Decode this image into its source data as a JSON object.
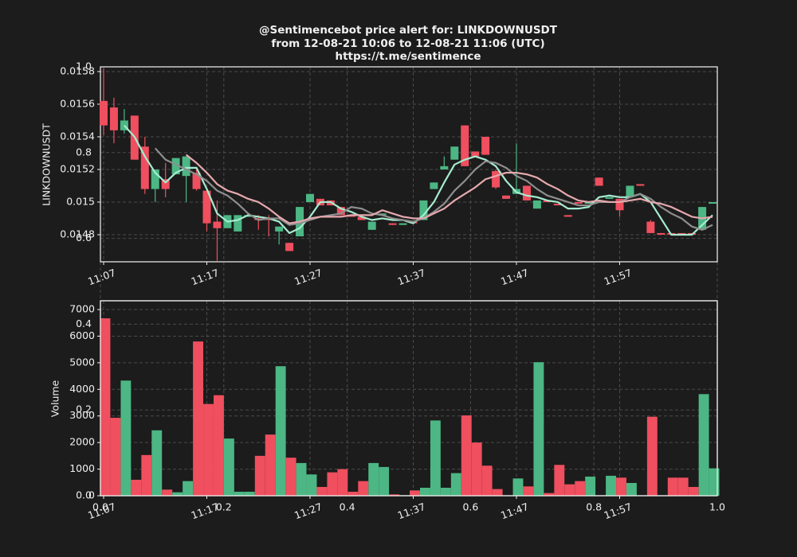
{
  "chart_data": [
    {
      "type": "candlestick",
      "title": [
        "@Sentimencebot price alert for: LINKDOWNUSDT",
        "from 12-08-21 10:06 to 12-08-21 11:06 (UTC)",
        "https://t.me/sentimence"
      ],
      "ylabel": "LINKDOWNUSDT",
      "x": [
        "11:07",
        "11:08",
        "11:09",
        "11:10",
        "11:11",
        "11:12",
        "11:13",
        "11:14",
        "11:15",
        "11:16",
        "11:17",
        "11:18",
        "11:19",
        "11:20",
        "11:21",
        "11:22",
        "11:23",
        "11:24",
        "11:25",
        "11:26",
        "11:27",
        "11:28",
        "11:29",
        "11:30",
        "11:31",
        "11:32",
        "11:33",
        "11:34",
        "11:35",
        "11:36",
        "11:37",
        "11:38",
        "11:39",
        "11:40",
        "11:41",
        "11:42",
        "11:43",
        "11:44",
        "11:45",
        "11:46",
        "11:47",
        "11:48",
        "11:49",
        "11:50",
        "11:51",
        "11:52",
        "11:53",
        "11:54",
        "11:55",
        "11:56",
        "11:57",
        "11:58",
        "11:59",
        "12:00",
        "12:01",
        "12:02",
        "12:03",
        "12:04",
        "12:05",
        "12:06"
      ],
      "open": [
        0.01562,
        0.01558,
        0.01544,
        0.01553,
        0.01534,
        0.01508,
        0.01514,
        0.01517,
        0.01516,
        0.01518,
        0.01507,
        0.01488,
        0.01484,
        0.01482,
        0.01491,
        0.0149,
        0.0149,
        0.01482,
        0.01475,
        0.01479,
        0.015,
        0.01502,
        0.01501,
        0.01497,
        0.01492,
        0.01491,
        0.01483,
        0.01492,
        0.01487,
        0.01486,
        0.01488,
        0.01489,
        0.01508,
        0.0152,
        0.01526,
        0.01547,
        0.01531,
        0.0154,
        0.01519,
        0.01504,
        0.01505,
        0.0151,
        0.01496,
        0.01501,
        0.01499,
        0.01492,
        0.015,
        0.01499,
        0.01515,
        0.01502,
        0.01502,
        0.01503,
        0.01511,
        0.01488,
        0.01481,
        0.01481,
        0.01481,
        0.01481,
        0.01483,
        0.01499
      ],
      "high": [
        0.01582,
        0.01564,
        0.01557,
        0.01553,
        0.0154,
        0.0152,
        0.01524,
        0.01527,
        0.01528,
        0.0152,
        0.01507,
        0.01501,
        0.01492,
        0.01492,
        0.01492,
        0.01492,
        0.01492,
        0.01485,
        0.01475,
        0.01497,
        0.01505,
        0.01502,
        0.01501,
        0.01497,
        0.01492,
        0.01491,
        0.01488,
        0.01493,
        0.01487,
        0.01487,
        0.01488,
        0.01501,
        0.01512,
        0.01528,
        0.01534,
        0.01547,
        0.01531,
        0.0154,
        0.0152,
        0.01504,
        0.01536,
        0.0151,
        0.01501,
        0.01501,
        0.01499,
        0.01492,
        0.015,
        0.015,
        0.01515,
        0.01503,
        0.01502,
        0.0151,
        0.01511,
        0.01489,
        0.01481,
        0.01481,
        0.01481,
        0.01481,
        0.01497,
        0.015
      ],
      "low": [
        0.01541,
        0.01536,
        0.01542,
        0.01526,
        0.01505,
        0.015,
        0.01503,
        0.01517,
        0.015,
        0.01507,
        0.01482,
        0.01464,
        0.01484,
        0.01482,
        0.01491,
        0.01483,
        0.01479,
        0.01474,
        0.0147,
        0.01479,
        0.015,
        0.01498,
        0.01498,
        0.01492,
        0.01491,
        0.01489,
        0.01483,
        0.01492,
        0.01486,
        0.01486,
        0.01487,
        0.01489,
        0.01508,
        0.0152,
        0.01526,
        0.01522,
        0.01528,
        0.01529,
        0.01508,
        0.01502,
        0.01505,
        0.01501,
        0.01496,
        0.015,
        0.01498,
        0.01491,
        0.01499,
        0.01499,
        0.0151,
        0.01502,
        0.01491,
        0.01503,
        0.0151,
        0.01481,
        0.0148,
        0.0148,
        0.0148,
        0.0148,
        0.01483,
        0.01499
      ],
      "close": [
        0.01547,
        0.01544,
        0.0155,
        0.01526,
        0.01508,
        0.0152,
        0.01508,
        0.01527,
        0.01528,
        0.01508,
        0.01487,
        0.01484,
        0.01492,
        0.01492,
        0.01492,
        0.01489,
        0.01489,
        0.01485,
        0.0147,
        0.01497,
        0.01505,
        0.01498,
        0.01498,
        0.01492,
        0.01491,
        0.01489,
        0.01488,
        0.01493,
        0.01486,
        0.01487,
        0.01487,
        0.01501,
        0.01512,
        0.01522,
        0.01534,
        0.01522,
        0.01528,
        0.01529,
        0.01509,
        0.01502,
        0.01508,
        0.01501,
        0.01501,
        0.015,
        0.01498,
        0.01491,
        0.01499,
        0.015,
        0.0151,
        0.01503,
        0.01495,
        0.0151,
        0.0151,
        0.01481,
        0.0148,
        0.0148,
        0.0148,
        0.0148,
        0.01497,
        0.015
      ],
      "up_color": "#4cb784",
      "down_color": "#ef4f5e",
      "moving_averages": [
        {
          "color": "#a6ecd0",
          "values": [
            null,
            null,
            0.01547,
            0.0154,
            0.01528,
            0.01518,
            0.01512,
            0.01518,
            0.01521,
            0.01521,
            0.01508,
            0.01493,
            0.01488,
            0.01489,
            0.01492,
            0.01491,
            0.0149,
            0.01488,
            0.01481,
            0.01484,
            0.01491,
            0.015,
            0.015,
            0.01496,
            0.01494,
            0.01491,
            0.01489,
            0.0149,
            0.01489,
            0.01489,
            0.01487,
            0.01492,
            0.015,
            0.01512,
            0.01523,
            0.01526,
            0.01528,
            0.01526,
            0.01522,
            0.01513,
            0.01506,
            0.01504,
            0.01503,
            0.01501,
            0.015,
            0.01496,
            0.01496,
            0.01497,
            0.01503,
            0.01504,
            0.01503,
            0.01503,
            0.01505,
            0.015,
            0.0149,
            0.0148,
            0.0148,
            0.0148,
            0.01486,
            0.01492
          ]
        },
        {
          "color": "#8e8e8e",
          "values": [
            null,
            null,
            null,
            null,
            null,
            0.01533,
            0.01526,
            0.01523,
            0.0152,
            0.01517,
            0.01513,
            0.01507,
            0.01504,
            0.01499,
            0.01493,
            0.01489,
            0.0149,
            0.0149,
            0.01486,
            0.01487,
            0.01489,
            0.01491,
            0.01492,
            0.01493,
            0.01497,
            0.01496,
            0.01493,
            0.01492,
            0.0149,
            0.01489,
            0.01488,
            0.0149,
            0.01494,
            0.01499,
            0.01507,
            0.01513,
            0.0152,
            0.01525,
            0.01524,
            0.01521,
            0.01516,
            0.01513,
            0.01508,
            0.01504,
            0.01502,
            0.015,
            0.01498,
            0.01498,
            0.015,
            0.015,
            0.015,
            0.01503,
            0.01505,
            0.01502,
            0.01497,
            0.01493,
            0.0149,
            0.01485,
            0.01483,
            0.01486
          ]
        },
        {
          "color": "#e6a9ae",
          "values": [
            null,
            null,
            null,
            null,
            null,
            null,
            null,
            null,
            0.01529,
            0.01524,
            0.01518,
            0.01511,
            0.01507,
            0.01505,
            0.01502,
            0.015,
            0.01496,
            0.01491,
            0.01487,
            0.01488,
            0.0149,
            0.01491,
            0.01491,
            0.01491,
            0.01492,
            0.01492,
            0.01492,
            0.01495,
            0.01493,
            0.01491,
            0.0149,
            0.0149,
            0.01493,
            0.01496,
            0.01501,
            0.01505,
            0.01509,
            0.01514,
            0.01516,
            0.01518,
            0.01518,
            0.01517,
            0.01515,
            0.01511,
            0.01508,
            0.01504,
            0.01501,
            0.015,
            0.01501,
            0.015,
            0.015,
            0.01501,
            0.01502,
            0.015,
            0.01499,
            0.01497,
            0.01494,
            0.01491,
            0.0149,
            0.01491
          ]
        }
      ],
      "ylim": [
        0.014634,
        0.015829
      ],
      "yticks": [
        0.0148,
        0.015,
        0.0152,
        0.0154,
        0.0156,
        0.0158
      ],
      "xticks": [
        "11:07",
        "11:17",
        "11:27",
        "11:37",
        "11:47",
        "11:57"
      ],
      "grid": true
    },
    {
      "type": "bar",
      "ylabel": "Volume",
      "x": [
        "11:07",
        "11:08",
        "11:09",
        "11:10",
        "11:11",
        "11:12",
        "11:13",
        "11:14",
        "11:15",
        "11:16",
        "11:17",
        "11:18",
        "11:19",
        "11:20",
        "11:21",
        "11:22",
        "11:23",
        "11:24",
        "11:25",
        "11:26",
        "11:27",
        "11:28",
        "11:29",
        "11:30",
        "11:31",
        "11:32",
        "11:33",
        "11:34",
        "11:35",
        "11:36",
        "11:37",
        "11:38",
        "11:39",
        "11:40",
        "11:41",
        "11:42",
        "11:43",
        "11:44",
        "11:45",
        "11:46",
        "11:47",
        "11:48",
        "11:49",
        "11:50",
        "11:51",
        "11:52",
        "11:53",
        "11:54",
        "11:55",
        "11:56",
        "11:57",
        "11:58",
        "11:59",
        "12:00",
        "12:01",
        "12:02",
        "12:03",
        "12:04",
        "12:05",
        "12:06"
      ],
      "values": [
        6670,
        2930,
        4330,
        600,
        1530,
        2460,
        230,
        130,
        550,
        5800,
        3450,
        3780,
        2150,
        150,
        150,
        1500,
        2300,
        4870,
        1430,
        1230,
        800,
        330,
        880,
        1000,
        150,
        550,
        1230,
        1080,
        50,
        20,
        200,
        300,
        2830,
        300,
        850,
        3020,
        2000,
        1130,
        250,
        0,
        650,
        350,
        5020,
        100,
        1160,
        430,
        550,
        720,
        0,
        750,
        680,
        480,
        0,
        2970,
        0,
        680,
        680,
        330,
        3820,
        1030
      ],
      "up_color": "#4cb784",
      "down_color": "#ef4f5e",
      "ylim": [
        0,
        7330
      ],
      "yticks": [
        0,
        1000,
        2000,
        3000,
        4000,
        5000,
        6000,
        7000
      ],
      "xticks": [
        "11:07",
        "11:17",
        "11:27",
        "11:37",
        "11:47",
        "11:57"
      ],
      "grid": true
    },
    {
      "type": "axes",
      "xlim": [
        0,
        1
      ],
      "ylim": [
        0,
        1
      ],
      "xticks": [
        {
          "value": 0,
          "label": "0.0"
        },
        0.2,
        0.4,
        0.6,
        0.8,
        {
          "value": 1,
          "label": "1.0"
        }
      ],
      "yticks": [
        {
          "value": 0,
          "label": "0.0"
        },
        0.2,
        0.4,
        0.6,
        0.8,
        {
          "value": 1,
          "label": "1.0"
        }
      ],
      "grid": true
    }
  ]
}
